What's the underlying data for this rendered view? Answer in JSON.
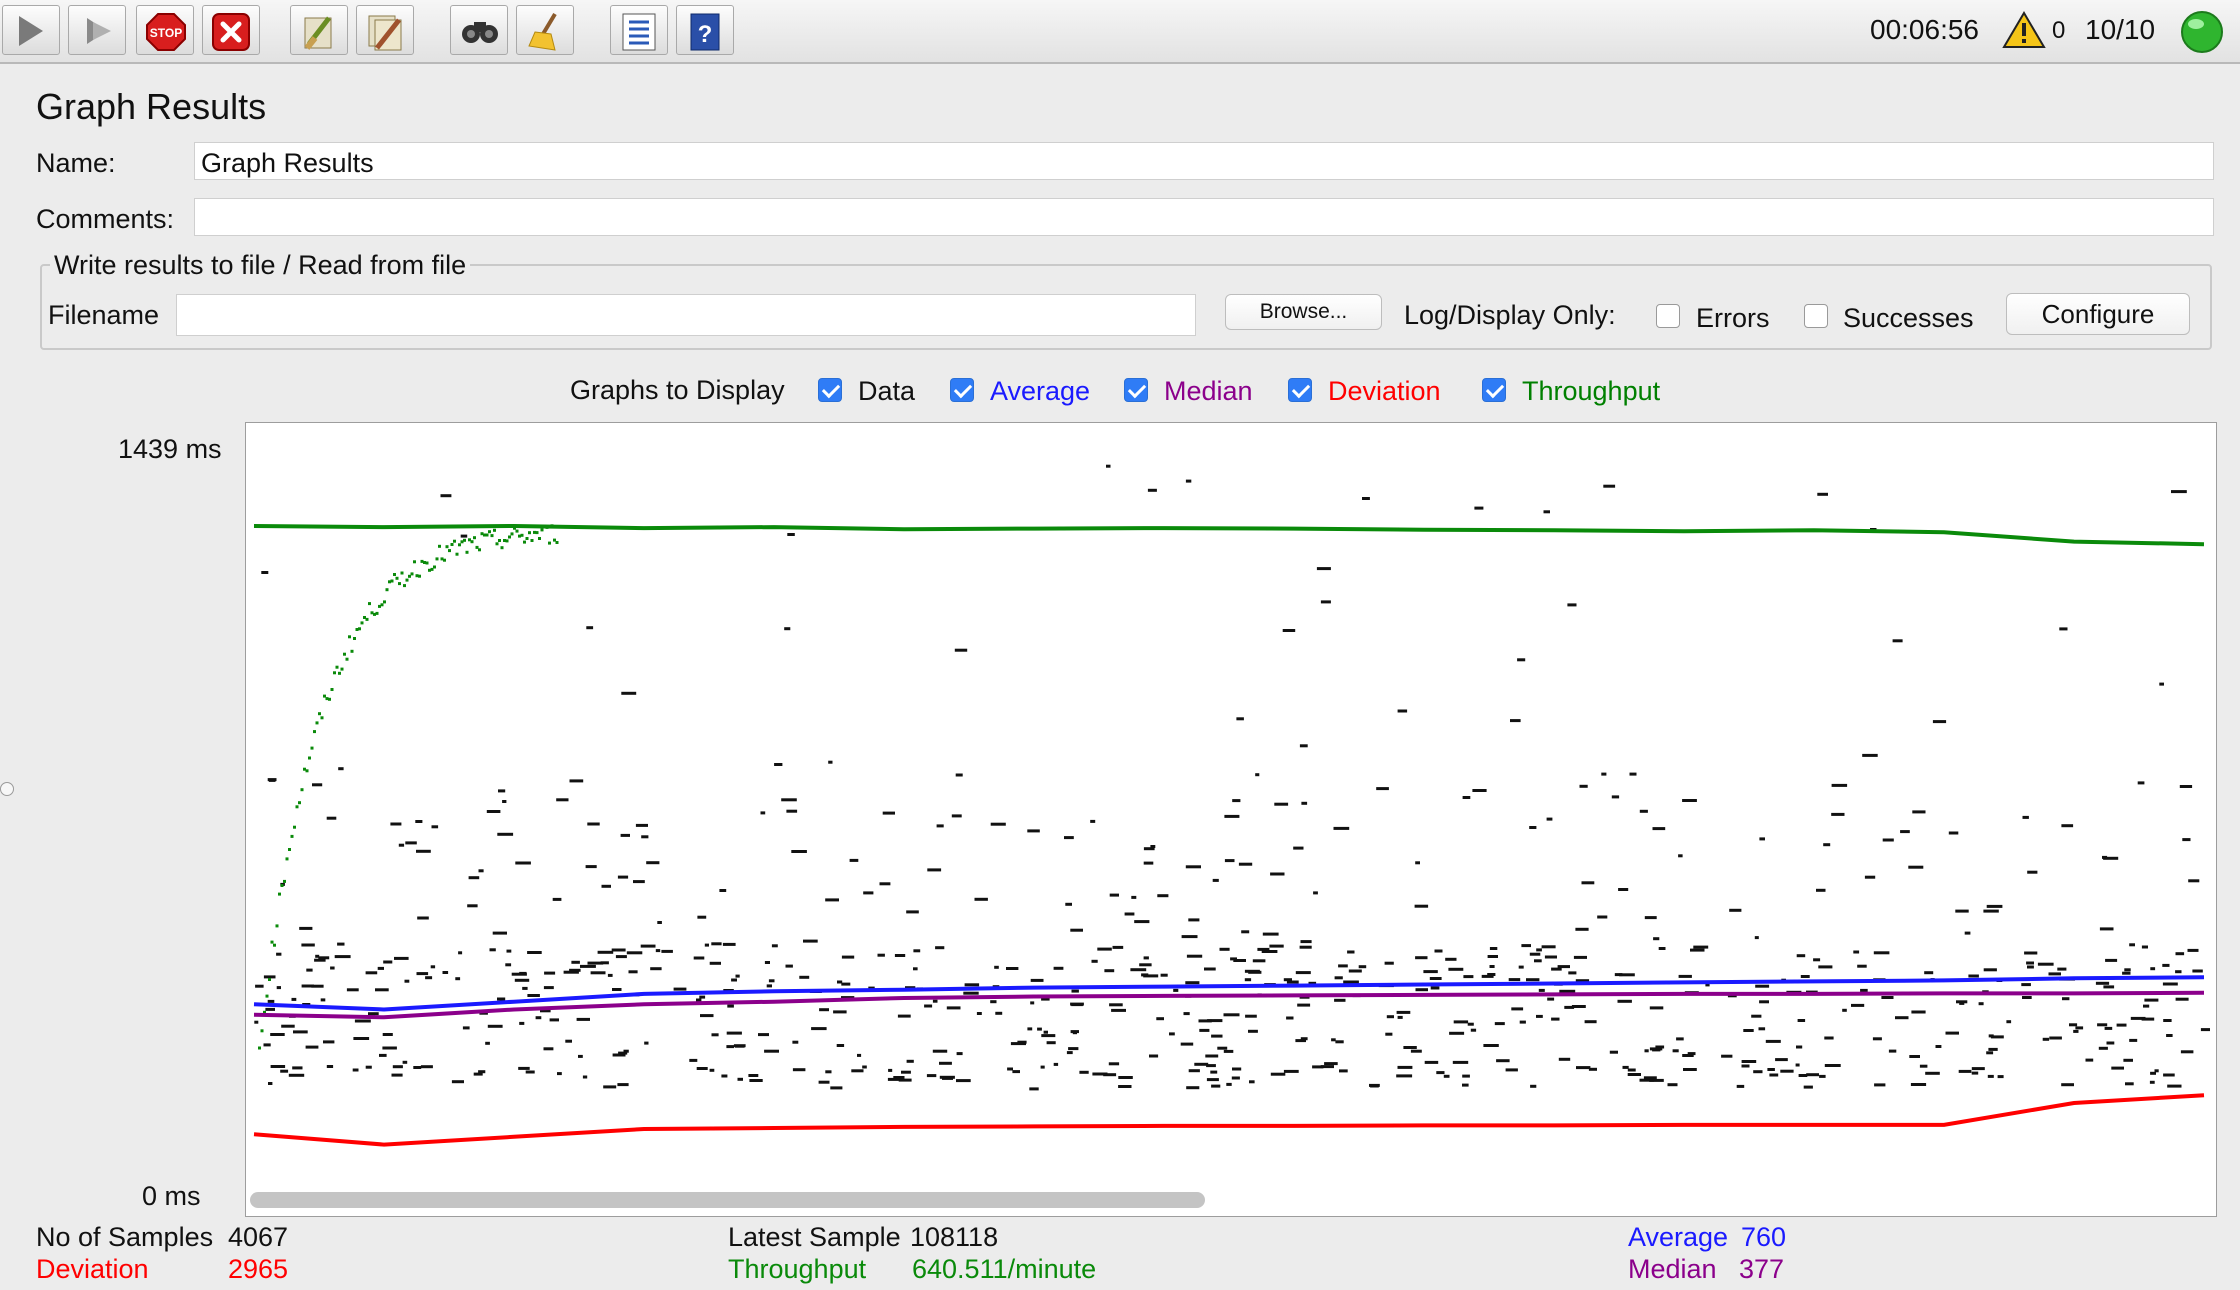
{
  "toolbar": {
    "buttons": [
      {
        "name": "start-icon"
      },
      {
        "name": "start-no-pauses-icon"
      },
      {
        "name": "stop-icon"
      },
      {
        "name": "shutdown-icon"
      },
      {
        "name": "clear-icon"
      },
      {
        "name": "clear-all-icon"
      },
      {
        "name": "search-icon"
      },
      {
        "name": "reset-search-icon"
      },
      {
        "name": "function-helper-icon"
      },
      {
        "name": "help-icon"
      }
    ],
    "stop_label": "STOP",
    "elapsed_time": "00:06:56",
    "warning_count": "0",
    "threads": "10/10"
  },
  "panel": {
    "title": "Graph Results",
    "name_label": "Name:",
    "name_value": "Graph Results",
    "comments_label": "Comments:",
    "comments_value": "",
    "file_group_title": "Write results to file / Read from file",
    "filename_label": "Filename",
    "filename_value": "",
    "browse_label": "Browse...",
    "log_display_label": "Log/Display Only:",
    "errors_label": "Errors",
    "successes_label": "Successes",
    "configure_label": "Configure"
  },
  "graphs_to_display": {
    "label": "Graphs to Display",
    "options": [
      {
        "label": "Data",
        "checked": true,
        "color": "#111111"
      },
      {
        "label": "Average",
        "checked": true,
        "color": "#1a1aff"
      },
      {
        "label": "Median",
        "checked": true,
        "color": "#8b008b"
      },
      {
        "label": "Deviation",
        "checked": true,
        "color": "#ff0000"
      },
      {
        "label": "Throughput",
        "checked": true,
        "color": "#008000"
      }
    ]
  },
  "chart_data": {
    "type": "line",
    "y_max_label": "1439  ms",
    "y_min_label": "0  ms",
    "ylim": [
      0,
      1439
    ],
    "series": [
      {
        "name": "Throughput",
        "color": "#0a8a0a",
        "values": [
          1260,
          1258,
          1260,
          1256,
          1258,
          1254,
          1255,
          1256,
          1255,
          1253,
          1252,
          1250,
          1252,
          1248,
          1230,
          1225
        ]
      },
      {
        "name": "Average",
        "color": "#1a1aff",
        "values": [
          340,
          330,
          345,
          360,
          365,
          368,
          372,
          374,
          376,
          378,
          380,
          382,
          384,
          386,
          390,
          392
        ]
      },
      {
        "name": "Median",
        "color": "#8b008b",
        "values": [
          320,
          315,
          330,
          340,
          345,
          352,
          355,
          356,
          357,
          358,
          359,
          360,
          360,
          361,
          361,
          362
        ]
      },
      {
        "name": "Deviation",
        "color": "#ff0000",
        "values": [
          90,
          70,
          85,
          100,
          102,
          104,
          105,
          106,
          106,
          107,
          107,
          108,
          108,
          108,
          150,
          165
        ]
      }
    ]
  },
  "stats": {
    "samples_label": "No of Samples",
    "samples_value": "4067",
    "deviation_label": "Deviation",
    "deviation_value": "2965",
    "latest_label": "Latest Sample",
    "latest_value": "108118",
    "throughput_label": "Throughput",
    "throughput_value": "640.511/minute",
    "average_label": "Average",
    "average_value": "760",
    "median_label": "Median",
    "median_value": "377"
  },
  "colors": {
    "data": "#111111",
    "average": "#1a1aff",
    "median": "#8b008b",
    "deviation": "#ff0000",
    "throughput": "#0a8a0a"
  }
}
